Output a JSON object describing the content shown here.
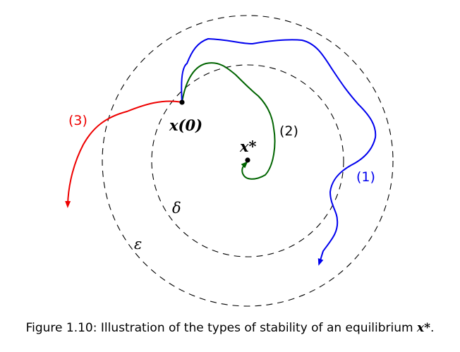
{
  "figure": {
    "labels": {
      "initial_state": "x(0)",
      "equilibrium": "x*",
      "delta": "δ",
      "epsilon": "ε",
      "traj1": "(1)",
      "traj2": "(2)",
      "traj3": "(3)"
    },
    "colors": {
      "traj1": "#0000ee",
      "traj2": "#006400",
      "traj3": "#ee0000",
      "circles": "#000000"
    }
  },
  "caption": {
    "label": "Figure 1.10:",
    "text": "Illustration of the types of stability of an equilibrium",
    "math": "x*",
    "end": "."
  }
}
